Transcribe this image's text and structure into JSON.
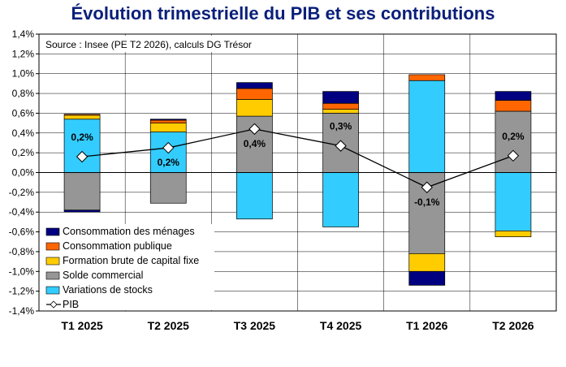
{
  "chart_data": {
    "type": "bar",
    "title": "Évolution trimestrielle du PIB et ses contributions",
    "source": "Source : Insee (PE T2 2026), calculs DG Trésor",
    "categories": [
      "T1 2025",
      "T2 2025",
      "T3 2025",
      "T4 2025",
      "T1 2026",
      "T2 2026"
    ],
    "y_tick_labels": [
      "1,4%",
      "1,2%",
      "1,0%",
      "0,8%",
      "0,6%",
      "0,4%",
      "0,2%",
      "0,0%",
      "-0,2%",
      "-0,4%",
      "-0,6%",
      "-0,8%",
      "-1,0%",
      "-1,2%",
      "-1,4%"
    ],
    "ylim": [
      -1.4,
      1.4
    ],
    "series": [
      {
        "name": "Consommation des ménages",
        "color": "#000080",
        "values": [
          -0.02,
          0.01,
          0.06,
          0.12,
          -0.14,
          0.09
        ]
      },
      {
        "name": "Consommation publique",
        "color": "#ff6600",
        "values": [
          0.01,
          0.03,
          0.11,
          0.06,
          0.06,
          0.11
        ]
      },
      {
        "name": "Formation brute de capital fixe",
        "color": "#ffcc00",
        "values": [
          0.04,
          0.09,
          0.17,
          0.04,
          -0.18,
          -0.06
        ]
      },
      {
        "name": "Solde commercial",
        "color": "#969696",
        "values": [
          -0.38,
          -0.31,
          0.57,
          0.6,
          -0.82,
          0.62
        ]
      },
      {
        "name": "Variations de stocks",
        "color": "#33ccff",
        "values": [
          0.54,
          0.41,
          -0.47,
          -0.55,
          0.93,
          -0.59
        ]
      }
    ],
    "line": {
      "name": "PIB",
      "values": [
        0.16,
        0.25,
        0.44,
        0.27,
        -0.15,
        0.17
      ]
    },
    "data_labels": [
      "0,2%",
      "0,2%",
      "0,4%",
      "0,3%",
      "-0,1%",
      "0,2%"
    ],
    "grid": true,
    "legend_position": "bottom-left"
  }
}
